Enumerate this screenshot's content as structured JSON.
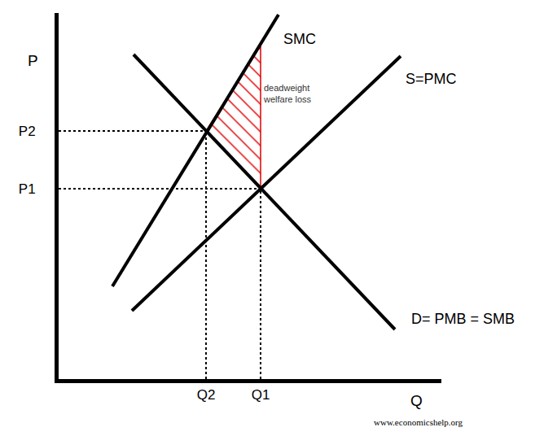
{
  "chart_data": {
    "type": "line",
    "source": "www.economicshelp.org",
    "x_label": "Q",
    "y_label": "P",
    "xlim": [
      0,
      470
    ],
    "ylim": [
      0,
      450
    ],
    "xticks": [
      {
        "value": 181,
        "label": "Q2"
      },
      {
        "value": 248,
        "label": "Q1"
      }
    ],
    "yticks": [
      {
        "value": 234,
        "label": "P1"
      },
      {
        "value": 305,
        "label": "P2"
      }
    ],
    "grid": false,
    "equilibria": [
      {
        "x": 181,
        "y": 305
      },
      {
        "x": 248,
        "y": 234
      }
    ],
    "series": [
      {
        "name": "SMC",
        "color": "#000000",
        "line_style": "solid",
        "x": [
          66,
          270
        ],
        "values": [
          114,
          448
        ]
      },
      {
        "name": "S=PMC",
        "color": "#000000",
        "line_style": "solid",
        "x": [
          90,
          420
        ],
        "values": [
          84,
          397
        ]
      },
      {
        "name": "D= PMB = SMB",
        "color": "#000000",
        "line_style": "solid",
        "x": [
          92,
          413
        ],
        "values": [
          399,
          61
        ]
      }
    ],
    "deadweight": {
      "label_lines": [
        "deadweight",
        "welfare loss"
      ],
      "color": "#e00000",
      "x": [
        181,
        248,
        248
      ],
      "values": [
        305,
        234,
        410
      ]
    }
  }
}
